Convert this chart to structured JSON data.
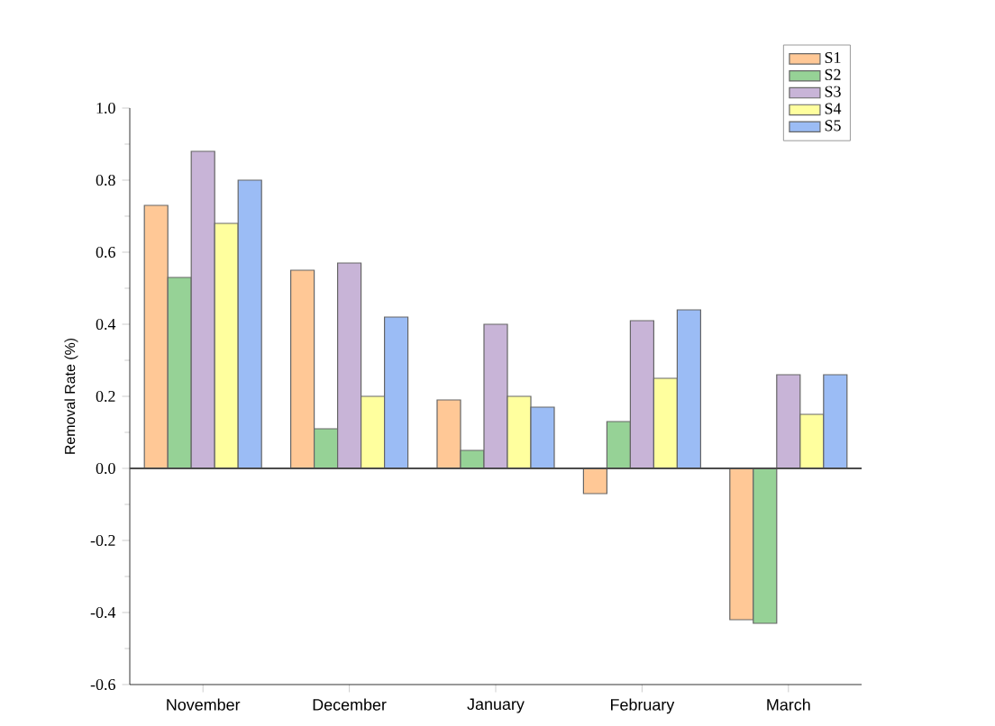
{
  "chart_data": {
    "type": "bar",
    "ylabel": "Removal Rate  (%)",
    "categories": [
      "November",
      "December",
      "January",
      "February",
      "March"
    ],
    "series": [
      {
        "name": "S1",
        "color": "#ffc896",
        "values": [
          0.73,
          0.55,
          0.19,
          -0.07,
          -0.42
        ]
      },
      {
        "name": "S2",
        "color": "#96d296",
        "values": [
          0.53,
          0.11,
          0.05,
          0.13,
          -0.43
        ]
      },
      {
        "name": "S3",
        "color": "#c8b4d7",
        "values": [
          0.88,
          0.57,
          0.4,
          0.41,
          0.26
        ]
      },
      {
        "name": "S4",
        "color": "#ffff9e",
        "values": [
          0.68,
          0.2,
          0.2,
          0.25,
          0.15
        ]
      },
      {
        "name": "S5",
        "color": "#9bbcf5",
        "values": [
          0.8,
          0.42,
          0.17,
          0.44,
          0.26
        ]
      }
    ],
    "ylim": [
      -0.6,
      1.0
    ],
    "yticks": [
      {
        "value": -0.6,
        "label": "-0.6"
      },
      {
        "value": -0.4,
        "label": "-0.4"
      },
      {
        "value": -0.2,
        "label": "-0.2"
      },
      {
        "value": 0,
        "label": "0.0"
      },
      {
        "value": 0.2,
        "label": "0.2"
      },
      {
        "value": 0.4,
        "label": "0.4"
      },
      {
        "value": 0.6,
        "label": "0.6"
      },
      {
        "value": 0.8,
        "label": "0.8"
      },
      {
        "value": 1.0,
        "label": "1.0"
      }
    ],
    "ref_lines": [
      {
        "axis": "y",
        "value": 0
      }
    ],
    "legend": "top right"
  }
}
